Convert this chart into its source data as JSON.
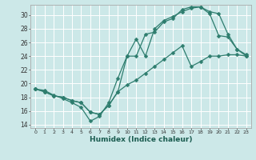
{
  "xlabel": "Humidex (Indice chaleur)",
  "bg_color": "#cce8e8",
  "grid_color": "#ffffff",
  "line_color": "#2e7d6e",
  "marker": "D",
  "markersize": 2.5,
  "linewidth": 0.9,
  "xlim": [
    -0.5,
    23.5
  ],
  "ylim": [
    13.5,
    31.5
  ],
  "xticks": [
    0,
    1,
    2,
    3,
    4,
    5,
    6,
    7,
    8,
    9,
    10,
    11,
    12,
    13,
    14,
    15,
    16,
    17,
    18,
    19,
    20,
    21,
    22,
    23
  ],
  "yticks": [
    14,
    16,
    18,
    20,
    22,
    24,
    26,
    28,
    30
  ],
  "line1_x": [
    0,
    1,
    2,
    3,
    4,
    5,
    6,
    7,
    8,
    9,
    10,
    11,
    12,
    13,
    14,
    15,
    16,
    17,
    18,
    19,
    20,
    21,
    22,
    23
  ],
  "line1_y": [
    19.2,
    19.0,
    18.3,
    17.8,
    17.2,
    16.5,
    14.5,
    15.2,
    17.2,
    20.8,
    24.0,
    26.5,
    24.0,
    28.0,
    29.2,
    29.8,
    30.5,
    31.0,
    31.2,
    30.2,
    27.0,
    26.8,
    25.0,
    24.0
  ],
  "line2_x": [
    0,
    1,
    2,
    3,
    4,
    5,
    6,
    7,
    8,
    9,
    10,
    11,
    12,
    13,
    14,
    15,
    16,
    17,
    18,
    19,
    20,
    21,
    22,
    23
  ],
  "line2_y": [
    19.2,
    18.8,
    18.2,
    18.0,
    17.5,
    17.2,
    15.8,
    15.5,
    16.8,
    18.8,
    24.0,
    24.0,
    27.2,
    27.5,
    29.0,
    29.5,
    30.8,
    31.2,
    31.2,
    30.5,
    30.2,
    27.2,
    25.0,
    24.2
  ],
  "line3_x": [
    0,
    1,
    2,
    3,
    4,
    5,
    6,
    7,
    8,
    9,
    10,
    11,
    12,
    13,
    14,
    15,
    16,
    17,
    18,
    19,
    20,
    21,
    22,
    23
  ],
  "line3_y": [
    19.2,
    18.8,
    18.2,
    18.0,
    17.5,
    17.2,
    15.8,
    15.5,
    16.8,
    18.8,
    19.8,
    20.5,
    21.5,
    22.5,
    23.5,
    24.5,
    25.5,
    22.5,
    23.2,
    24.0,
    24.0,
    24.2,
    24.2,
    24.0
  ]
}
